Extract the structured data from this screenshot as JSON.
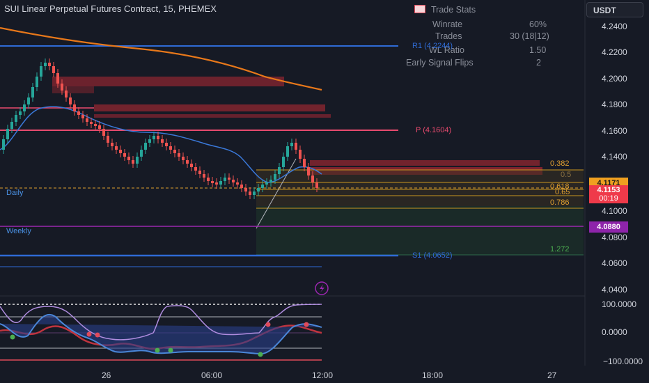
{
  "title": "SUI Linear Perpetual Futures Contract, 15, PHEMEX",
  "currency": "USDT",
  "trade_stats": {
    "header": "Trade Stats",
    "rows": [
      {
        "label": "Winrate",
        "value": "60%"
      },
      {
        "label": "Trades",
        "value": "30 (18|12)"
      },
      {
        "label": "WL Ratio",
        "value": "1.50"
      },
      {
        "label": "Early Signal Flips",
        "value": "2"
      }
    ]
  },
  "price_axis": [
    "4.2400",
    "4.2200",
    "4.2000",
    "4.1800",
    "4.1600",
    "4.1400",
    "4.1200",
    "4.1000",
    "4.0800",
    "4.0600",
    "4.0400"
  ],
  "price_tags": {
    "fib": "4.1171",
    "last": "4.1153",
    "countdown": "00:19",
    "weekly": "4.0880"
  },
  "osc_axis": [
    "100.0000",
    "0.0000",
    "−100.0000"
  ],
  "time_axis": [
    "26",
    "06:00",
    "12:00",
    "18:00",
    "27"
  ],
  "levels": {
    "r1": "R1 (4.2244)",
    "p": "P (4.1604)",
    "s1": "S1 (4.0652)",
    "daily": "Daily",
    "weekly": "Weekly"
  },
  "fib_levels": [
    "0.382",
    "0.5",
    "0.618",
    "0.65",
    "0.786",
    "1.272"
  ],
  "colors": {
    "background": "#161a25",
    "up": "#26a69a",
    "down": "#ef5350",
    "pivot": "#e84a6e",
    "support": "#2f6bd6",
    "weekly": "#9c27b0",
    "fib": "#e0a030"
  }
}
